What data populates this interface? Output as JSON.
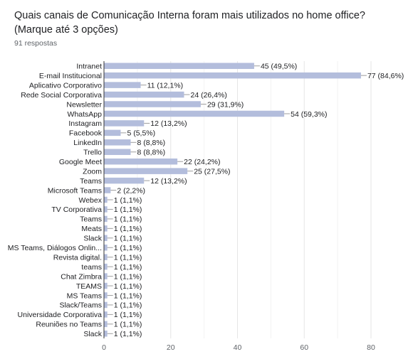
{
  "header": {
    "title": "Quais canais de Comunicação Interna foram mais utilizados no home office? (Marque até 3 opções)",
    "subtitle": "91 respostas"
  },
  "chart_data": {
    "type": "bar",
    "orientation": "horizontal",
    "bar_color": "#b3bddc",
    "categories": [
      "Intranet",
      "E-mail Institucional",
      "Aplicativo Corporativo",
      "Rede Social Corporativa",
      "Newsletter",
      "WhatsApp",
      "Instagram",
      "Facebook",
      "LinkedIn",
      "Trello",
      "Google Meet",
      "Zoom",
      "Teams",
      "Microsoft Teams",
      "Webex",
      "TV Corporativa",
      "Teams",
      "Meats",
      "Slack",
      "MS Teams, Diálogos Onlin...",
      "Revista digital.",
      "teams",
      "Chat Zimbra",
      "TEAMS",
      "MS Teams",
      "Slack/Teams",
      "Universidade Corporativa",
      "Reuniões no Teams",
      "Slack"
    ],
    "values": [
      45,
      77,
      11,
      24,
      29,
      54,
      12,
      5,
      8,
      8,
      22,
      25,
      12,
      2,
      1,
      1,
      1,
      1,
      1,
      1,
      1,
      1,
      1,
      1,
      1,
      1,
      1,
      1,
      1
    ],
    "value_labels": [
      "45 (49,5%)",
      "77 (84,6%)",
      "11 (12,1%)",
      "24 (26,4%)",
      "29 (31,9%)",
      "54 (59,3%)",
      "12 (13,2%)",
      "5 (5,5%)",
      "8 (8,8%)",
      "8 (8,8%)",
      "22 (24,2%)",
      "25 (27,5%)",
      "12 (13,2%)",
      "2 (2,2%)",
      "1 (1,1%)",
      "1 (1,1%)",
      "1 (1,1%)",
      "1 (1,1%)",
      "1 (1,1%)",
      "1 (1,1%)",
      "1 (1,1%)",
      "1 (1,1%)",
      "1 (1,1%)",
      "1 (1,1%)",
      "1 (1,1%)",
      "1 (1,1%)",
      "1 (1,1%)",
      "1 (1,1%)",
      "1 (1,1%)"
    ],
    "xlim": [
      0,
      80
    ],
    "xticks": [
      "0",
      "20",
      "40",
      "60",
      "80"
    ],
    "grid": true
  }
}
